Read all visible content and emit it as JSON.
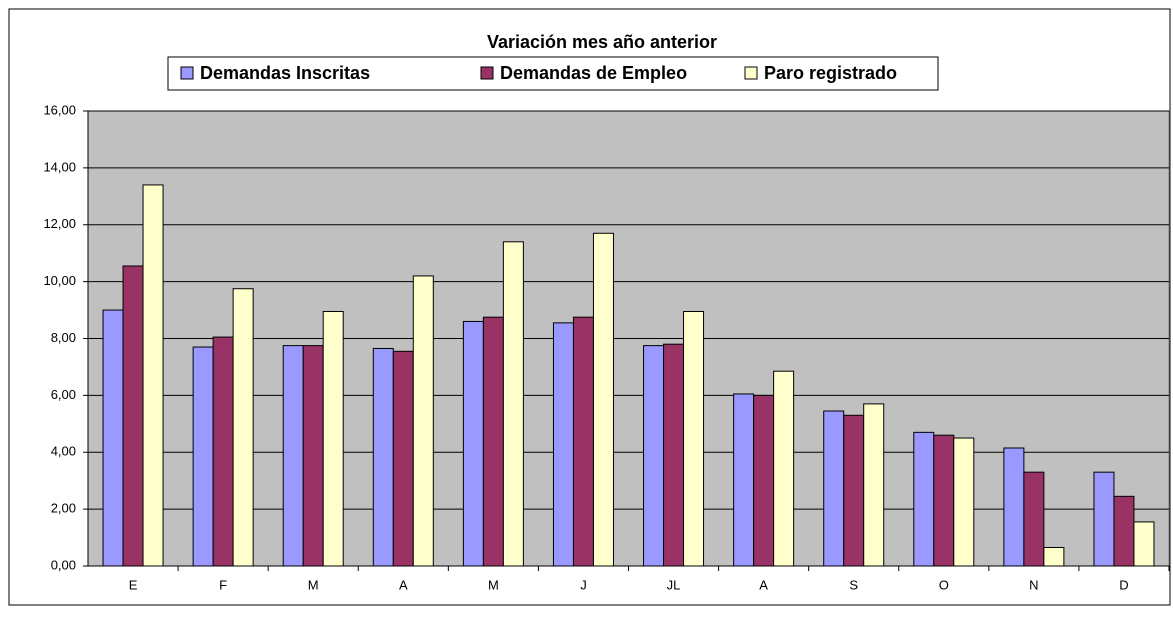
{
  "chart_data": {
    "type": "bar",
    "title": "Variación mes año anterior",
    "categories": [
      "E",
      "F",
      "M",
      "A",
      "M",
      "J",
      "JL",
      "A",
      "S",
      "O",
      "N",
      "D"
    ],
    "series": [
      {
        "name": "Demandas Inscritas",
        "color": "#9999ff",
        "values": [
          9.0,
          7.7,
          7.75,
          7.65,
          8.6,
          8.55,
          7.75,
          6.05,
          5.45,
          4.7,
          4.15,
          3.3
        ]
      },
      {
        "name": "Demandas de Empleo",
        "color": "#993366",
        "values": [
          10.55,
          8.05,
          7.75,
          7.55,
          8.75,
          8.75,
          7.8,
          6.0,
          5.3,
          4.6,
          3.3,
          2.45
        ]
      },
      {
        "name": "Paro registrado",
        "color": "#ffffcc",
        "values": [
          13.4,
          9.75,
          8.95,
          10.2,
          11.4,
          11.7,
          8.95,
          6.85,
          5.7,
          4.5,
          0.65,
          1.55
        ]
      }
    ],
    "ylim": [
      0,
      16
    ],
    "yticks": [
      {
        "value": 0,
        "label": "0,00"
      },
      {
        "value": 2,
        "label": "2,00"
      },
      {
        "value": 4,
        "label": "4,00"
      },
      {
        "value": 6,
        "label": "6,00"
      },
      {
        "value": 8,
        "label": "8,00"
      },
      {
        "value": 10,
        "label": "10,00"
      },
      {
        "value": 12,
        "label": "12,00"
      },
      {
        "value": 14,
        "label": "14,00"
      },
      {
        "value": 16,
        "label": "16,00"
      }
    ],
    "grid": true,
    "plot_background": "#c0c0c0"
  }
}
